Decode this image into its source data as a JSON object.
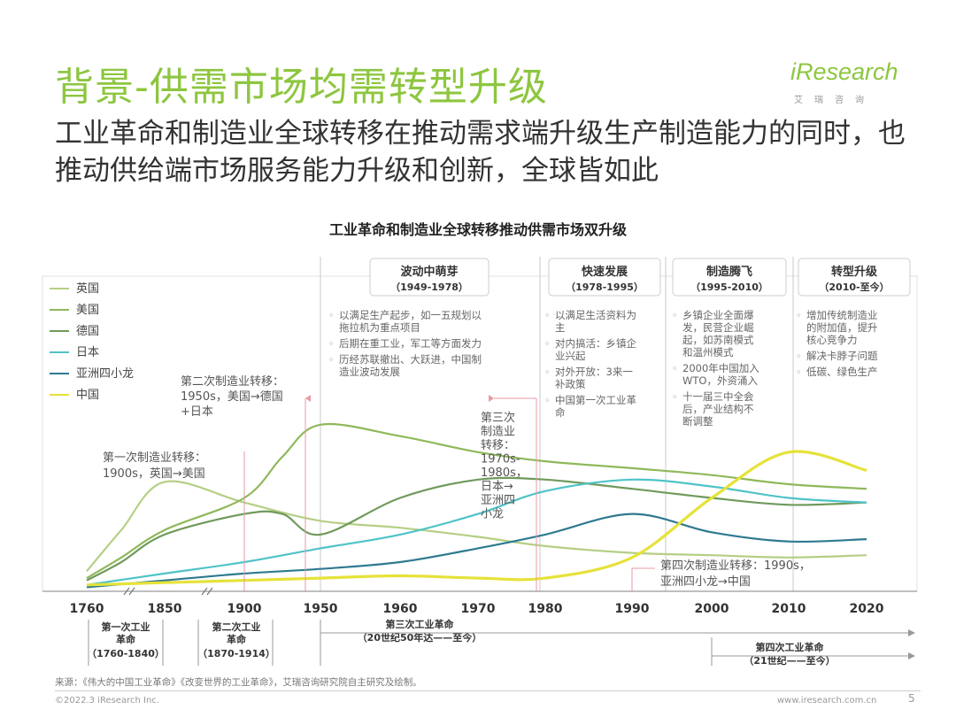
{
  "title": "背景-供需市场均需转型升级",
  "subtitle": "工业革命和制造业全球转移在推动需求端升级生产制造能力的同时，也推动供给端市场服务能力升级和创新，全球皆如此",
  "logo": {
    "word": "iResearch",
    "sub": "艾瑞咨询"
  },
  "footer": {
    "source": "来源：《伟大的中国工业革命》《改变世界的工业革命》，艾瑞咨询研究院自主研究及绘制。",
    "copyright": "©2022.3 iResearch Inc.",
    "site": "www.iresearch.com.cn",
    "page": "5"
  },
  "colors": {
    "uk": "#b5cf85",
    "us": "#8fb85a",
    "de": "#6f9a5c",
    "jp": "#4fc3c8",
    "tigers": "#2f7a8f",
    "cn": "#e6e23a",
    "header": "#8dc63f",
    "marker": "#e89aa4"
  },
  "chart_data": {
    "type": "line",
    "title": "工业革命和制造业全球转移推动供需市场双升级",
    "x_ticks": [
      1760,
      1850,
      1900,
      1950,
      1960,
      1970,
      1980,
      1990,
      2000,
      2010,
      2020
    ],
    "legend": {
      "placement": "top-left",
      "entries": [
        "英国",
        "美国",
        "德国",
        "日本",
        "亚洲四小龙",
        "中国"
      ]
    },
    "y_axis": "unlabeled (relative)",
    "series": [
      {
        "name": "英国",
        "color": "#b5cf85",
        "points": [
          [
            1760,
            8
          ],
          [
            1800,
            26
          ],
          [
            1850,
            47
          ],
          [
            1900,
            38
          ],
          [
            1950,
            30
          ],
          [
            1960,
            27
          ],
          [
            1970,
            23
          ],
          [
            1980,
            19
          ],
          [
            1990,
            16
          ],
          [
            2000,
            15
          ],
          [
            2010,
            14
          ],
          [
            2020,
            15
          ]
        ]
      },
      {
        "name": "美国",
        "color": "#8fb85a",
        "points": [
          [
            1760,
            5
          ],
          [
            1800,
            14
          ],
          [
            1850,
            26
          ],
          [
            1900,
            40
          ],
          [
            1925,
            58
          ],
          [
            1950,
            72
          ],
          [
            1960,
            67
          ],
          [
            1970,
            60
          ],
          [
            1980,
            56
          ],
          [
            1990,
            53
          ],
          [
            2000,
            50
          ],
          [
            2010,
            46
          ],
          [
            2020,
            44
          ]
        ]
      },
      {
        "name": "德国",
        "color": "#6f9a5c",
        "points": [
          [
            1760,
            4
          ],
          [
            1800,
            12
          ],
          [
            1850,
            24
          ],
          [
            1900,
            33
          ],
          [
            1925,
            33
          ],
          [
            1950,
            24
          ],
          [
            1960,
            40
          ],
          [
            1970,
            48
          ],
          [
            1980,
            48
          ],
          [
            1990,
            44
          ],
          [
            2000,
            40
          ],
          [
            2010,
            37
          ],
          [
            2020,
            38
          ]
        ]
      },
      {
        "name": "日本",
        "color": "#4fc3c8",
        "points": [
          [
            1760,
            2
          ],
          [
            1850,
            7
          ],
          [
            1900,
            12
          ],
          [
            1950,
            18
          ],
          [
            1960,
            24
          ],
          [
            1970,
            33
          ],
          [
            1980,
            43
          ],
          [
            1990,
            48
          ],
          [
            2000,
            45
          ],
          [
            2010,
            40
          ],
          [
            2020,
            38
          ]
        ]
      },
      {
        "name": "亚洲四小龙",
        "color": "#2f7a8f",
        "points": [
          [
            1760,
            1
          ],
          [
            1850,
            4
          ],
          [
            1900,
            7
          ],
          [
            1950,
            9
          ],
          [
            1960,
            12
          ],
          [
            1970,
            18
          ],
          [
            1980,
            24
          ],
          [
            1990,
            33
          ],
          [
            2000,
            25
          ],
          [
            2010,
            21
          ],
          [
            2020,
            22
          ]
        ]
      },
      {
        "name": "中国",
        "color": "#e6e23a",
        "points": [
          [
            1760,
            2
          ],
          [
            1850,
            3
          ],
          [
            1900,
            4
          ],
          [
            1950,
            5
          ],
          [
            1960,
            6
          ],
          [
            1970,
            5
          ],
          [
            1980,
            5
          ],
          [
            1990,
            14
          ],
          [
            2000,
            40
          ],
          [
            2010,
            60
          ],
          [
            2020,
            52
          ]
        ]
      }
    ],
    "annotations": [
      {
        "text": [
          "第一次制造业转移：",
          "1900s，英国→美国"
        ]
      },
      {
        "text": [
          "第二次制造业转移：",
          "1950s，美国→德国",
          "+日本"
        ]
      },
      {
        "text": [
          "第三次",
          "制造业",
          "转移：",
          "1970s-",
          "1980s，",
          "日本→",
          "亚洲四",
          "小龙"
        ]
      },
      {
        "text": [
          "第四次制造业转移：1990s，",
          "亚洲四小龙→中国"
        ]
      }
    ],
    "phases": [
      {
        "title": "波动中萌芽",
        "period": "（1949-1978）",
        "bullets": [
          [
            "以满足生产起步，如一五规划以",
            "拖拉机为重点项目"
          ],
          [
            "后期在重工业，军工等方面发力"
          ],
          [
            "历经苏联撤出、大跃进，中国制",
            "造业波动发展"
          ]
        ]
      },
      {
        "title": "快速发展",
        "period": "（1978-1995）",
        "bullets": [
          [
            "以满足生活资料为",
            "主"
          ],
          [
            "对内搞活：乡镇企",
            "业兴起"
          ],
          [
            "对外开放：3来一",
            "补政策"
          ],
          [
            "中国第一次工业革",
            "命"
          ]
        ]
      },
      {
        "title": "制造腾飞",
        "period": "（1995-2010）",
        "bullets": [
          [
            "乡镇企业全面爆",
            "发，民营企业崛",
            "起，如苏南模式",
            "和温州模式"
          ],
          [
            "2000年中国加入",
            "WTO，外资涌入"
          ],
          [
            "十一届三中全会",
            "后，产业结构不",
            "断调整"
          ]
        ]
      },
      {
        "title": "转型升级",
        "period": "（2010-至今）",
        "bullets": [
          [
            "增加传统制造业",
            "的附加值，提升",
            "核心竞争力"
          ],
          [
            "解决卡脖子问题"
          ],
          [
            "低碳、绿色生产"
          ]
        ]
      }
    ],
    "revolutions": [
      {
        "lines": [
          "第一次工业",
          "革命",
          "（1760-1840）"
        ]
      },
      {
        "lines": [
          "第二次工业",
          "革命",
          "（1870-1914）"
        ]
      },
      {
        "lines": [
          "第三次工业革命",
          "（20世纪50年达——至今）"
        ]
      },
      {
        "lines": [
          "第四次工业革命",
          "（21世纪——至今）"
        ]
      }
    ]
  }
}
